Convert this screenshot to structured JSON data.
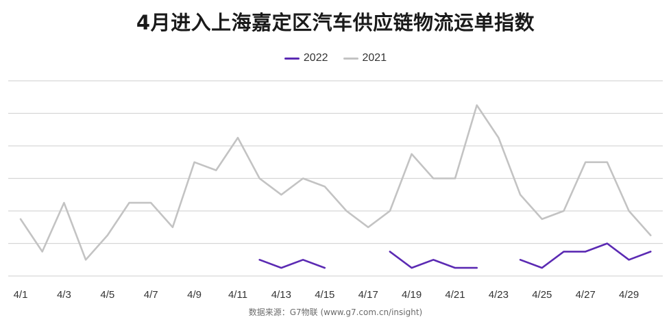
{
  "chart_data": {
    "type": "line",
    "title": "4月进入上海嘉定区汽车供应链物流运单指数",
    "xlabel": "",
    "ylabel": "",
    "x": [
      "4/1",
      "4/2",
      "4/3",
      "4/4",
      "4/5",
      "4/6",
      "4/7",
      "4/8",
      "4/9",
      "4/10",
      "4/11",
      "4/12",
      "4/13",
      "4/14",
      "4/15",
      "4/16",
      "4/17",
      "4/18",
      "4/19",
      "4/20",
      "4/21",
      "4/22",
      "4/23",
      "4/24",
      "4/25",
      "4/26",
      "4/27",
      "4/28",
      "4/29",
      "4/30"
    ],
    "x_tick_labels": [
      "4/1",
      "4/3",
      "4/5",
      "4/7",
      "4/9",
      "4/11",
      "4/13",
      "4/15",
      "4/17",
      "4/19",
      "4/21",
      "4/23",
      "4/25",
      "4/27",
      "4/29"
    ],
    "ylim": [
      0,
      12
    ],
    "y_gridlines": [
      0,
      2,
      4,
      6,
      8,
      10,
      12
    ],
    "y_tick_labels_shown": false,
    "grid": true,
    "legend_position": "top-center",
    "series": [
      {
        "name": "2022",
        "color": "#5b2ab3",
        "values": [
          null,
          null,
          null,
          null,
          null,
          null,
          null,
          null,
          null,
          null,
          null,
          1.0,
          0.5,
          1.0,
          0.5,
          null,
          null,
          1.5,
          0.5,
          1.0,
          0.5,
          0.5,
          null,
          1.0,
          0.5,
          1.5,
          1.5,
          2.0,
          1.0,
          1.5
        ]
      },
      {
        "name": "2021",
        "color": "#c3c3c3",
        "values": [
          3.5,
          1.5,
          4.5,
          1.0,
          2.5,
          4.5,
          4.5,
          3.0,
          7.0,
          6.5,
          8.5,
          6.0,
          5.0,
          6.0,
          5.5,
          4.0,
          3.0,
          4.0,
          7.5,
          6.0,
          6.0,
          10.5,
          8.5,
          5.0,
          3.5,
          4.0,
          7.0,
          7.0,
          4.0,
          2.5
        ]
      }
    ]
  },
  "source_note": "数据来源：G7物联 (www.g7.com.cn/insight)"
}
